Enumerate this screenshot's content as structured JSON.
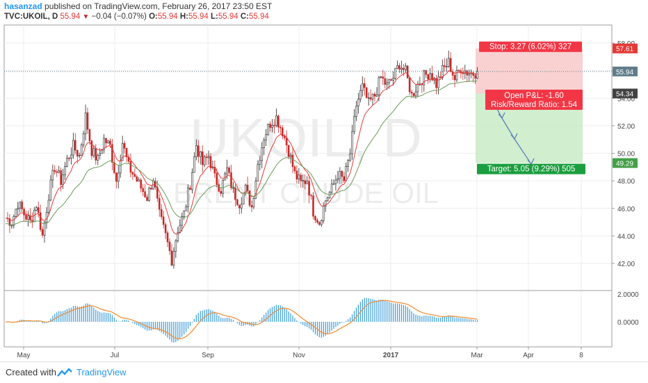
{
  "header": {
    "author": "hasanzad",
    "published_text": "published on TradingView.com, February 26, 2017 23:50 EST",
    "symbol": "TVC:UKOIL, D",
    "last": "55.94",
    "change": "−0.04 (−0.07%)",
    "o_label": "O:",
    "o": "55.94",
    "h_label": "H:",
    "h": "55.94",
    "l_label": "L:",
    "l": "55.94",
    "c_label": "C:",
    "c": "55.94"
  },
  "watermark": {
    "symbol": "UKOIL, D",
    "name": "BRENT CRUDE OIL"
  },
  "footer": {
    "created_with": "Created with",
    "brand": "TradingView"
  },
  "colors": {
    "up": "#222222",
    "down": "#c62828",
    "ema_fast": "#e53935",
    "ema_slow": "#6a9a58",
    "macd_hist": "#3a9bd9",
    "signal": "#f08a2e",
    "accent": "#2196f3"
  },
  "chart_data": {
    "type": "candlestick",
    "price_axis": {
      "min": 40,
      "max": 58,
      "ticks": [
        "42.00",
        "44.00",
        "46.00",
        "48.00",
        "50.00",
        "52.00",
        "54.00",
        "56.00",
        "58.00"
      ]
    },
    "x_ticks": [
      "May",
      "Jul",
      "Sep",
      "Nov",
      "2017",
      "Mar",
      "Apr",
      "8"
    ],
    "price_tags": [
      {
        "value": 57.61,
        "label": "57.61",
        "color": "#e53935"
      },
      {
        "value": 55.94,
        "label": "55.94",
        "color": "#607d8b"
      },
      {
        "value": 54.34,
        "label": "54.34",
        "color": "#424242"
      },
      {
        "value": 49.29,
        "label": "49.29",
        "color": "#43a047"
      }
    ],
    "last_price_line": 55.94,
    "position": {
      "stop_label": "Stop: 3.27 (6.02%) 327",
      "open_pl_label": "Open P&L: -1.60",
      "rr_label": "Risk/Reward Ratio: 1.54",
      "target_label": "Target: 5.05 (9.29%) 505",
      "entry": 54.34,
      "stop": 57.61,
      "target": 49.29
    },
    "close_path": [
      [
        0,
        45.3
      ],
      [
        3,
        45.0
      ],
      [
        6,
        46.4
      ],
      [
        9,
        45.6
      ],
      [
        12,
        45.0
      ],
      [
        15,
        46.3
      ],
      [
        18,
        44.0
      ],
      [
        21,
        47.0
      ],
      [
        24,
        49.0
      ],
      [
        27,
        48.0
      ],
      [
        30,
        49.5
      ],
      [
        33,
        50.5
      ],
      [
        36,
        49.8
      ],
      [
        39,
        52.7
      ],
      [
        42,
        50.2
      ],
      [
        45,
        49.5
      ],
      [
        48,
        51.0
      ],
      [
        51,
        50.5
      ],
      [
        54,
        48.0
      ],
      [
        57,
        50.8
      ],
      [
        60,
        49.0
      ],
      [
        63,
        48.3
      ],
      [
        66,
        47.5
      ],
      [
        69,
        46.8
      ],
      [
        72,
        48.2
      ],
      [
        75,
        45.5
      ],
      [
        78,
        44.0
      ],
      [
        81,
        42.3
      ],
      [
        84,
        44.5
      ],
      [
        87,
        45.6
      ],
      [
        90,
        47.8
      ],
      [
        93,
        50.6
      ],
      [
        96,
        49.2
      ],
      [
        99,
        49.8
      ],
      [
        102,
        48.2
      ],
      [
        105,
        47.4
      ],
      [
        108,
        48.8
      ],
      [
        111,
        47.2
      ],
      [
        114,
        46.4
      ],
      [
        117,
        47.4
      ],
      [
        120,
        46.1
      ],
      [
        123,
        49.2
      ],
      [
        126,
        51.2
      ],
      [
        129,
        52.2
      ],
      [
        132,
        52.6
      ],
      [
        135,
        51.6
      ],
      [
        138,
        50.2
      ],
      [
        141,
        48.5
      ],
      [
        144,
        47.8
      ],
      [
        147,
        48.1
      ],
      [
        150,
        45.8
      ],
      [
        153,
        45.0
      ],
      [
        156,
        46.6
      ],
      [
        159,
        47.4
      ],
      [
        162,
        48.5
      ],
      [
        165,
        48.0
      ],
      [
        168,
        50.0
      ],
      [
        171,
        53.5
      ],
      [
        174,
        54.8
      ],
      [
        177,
        53.6
      ],
      [
        180,
        54.2
      ],
      [
        183,
        55.5
      ],
      [
        186,
        54.9
      ],
      [
        189,
        55.5
      ],
      [
        192,
        56.5
      ],
      [
        195,
        55.9
      ],
      [
        198,
        54.2
      ],
      [
        201,
        55.0
      ],
      [
        204,
        55.6
      ],
      [
        207,
        55.9
      ],
      [
        210,
        55.0
      ],
      [
        213,
        56.0
      ],
      [
        216,
        56.6
      ],
      [
        219,
        55.4
      ],
      [
        222,
        56.2
      ],
      [
        225,
        55.9
      ],
      [
        228,
        55.8
      ],
      [
        230,
        55.94
      ]
    ]
  }
}
